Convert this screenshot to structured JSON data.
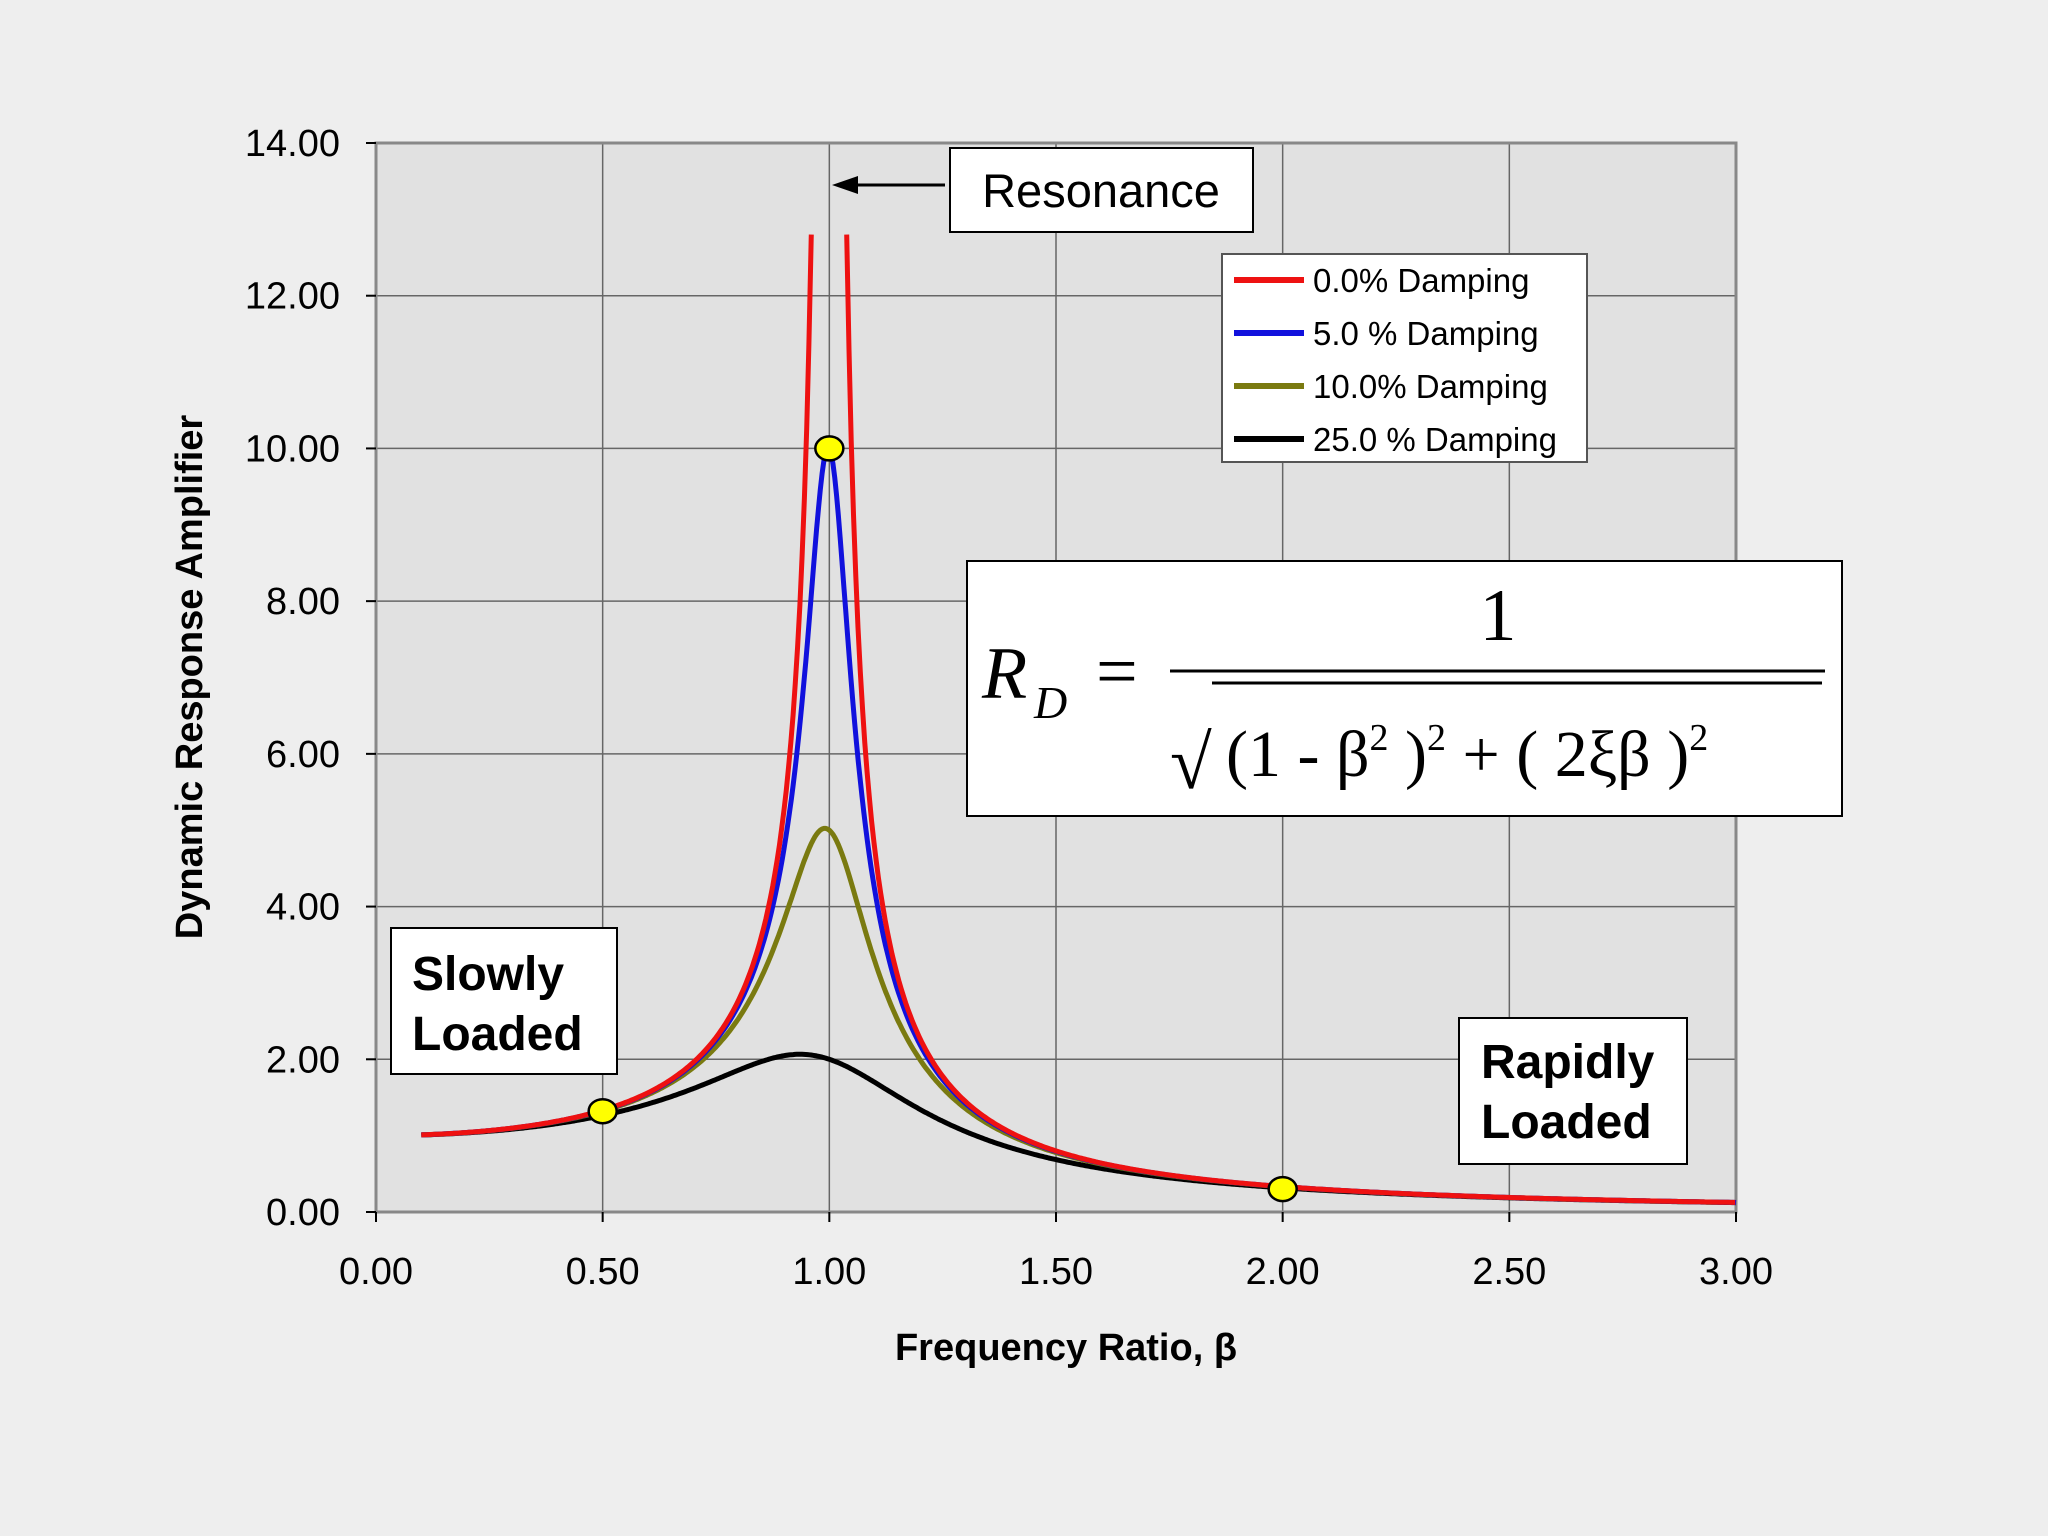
{
  "chart_data": {
    "type": "line",
    "title": "",
    "xlabel": "Frequency Ratio, β",
    "ylabel": "Dynamic Response Amplifier",
    "xlim": [
      0,
      3
    ],
    "ylim": [
      0,
      14
    ],
    "grid": true,
    "x_ticks": [
      0,
      0.5,
      1,
      1.5,
      2,
      2.5,
      3
    ],
    "x_tick_labels": [
      "0.00",
      "0.50",
      "1.00",
      "1.50",
      "2.00",
      "2.50",
      "3.00"
    ],
    "y_ticks": [
      0,
      2,
      4,
      6,
      8,
      10,
      12,
      14
    ],
    "y_tick_labels": [
      "0.00",
      "2.00",
      "4.00",
      "6.00",
      "8.00",
      "10.00",
      "12.00",
      "14.00"
    ],
    "legend_position": "top-right",
    "series": [
      {
        "name": "0.0% Damping",
        "color": "#ee1111",
        "zeta": 0.0,
        "x_range": [
          0.1,
          3.0
        ],
        "peak_clip": 12.8
      },
      {
        "name": "5.0 % Damping",
        "color": "#1111dd",
        "zeta": 0.05,
        "x_range": [
          0.1,
          3.0
        ]
      },
      {
        "name": "10.0% Damping",
        "color": "#7a7a10",
        "zeta": 0.1,
        "x_range": [
          0.1,
          3.0
        ]
      },
      {
        "name": "25.0 % Damping",
        "color": "#000000",
        "zeta": 0.25,
        "x_range": [
          0.1,
          3.0
        ]
      }
    ],
    "markers": [
      {
        "x": 0.5,
        "y": 1.32,
        "color": "#ffff00"
      },
      {
        "x": 1.0,
        "y": 10.0,
        "color": "#ffff00"
      },
      {
        "x": 2.0,
        "y": 0.3,
        "color": "#ffff00"
      }
    ],
    "annotations": {
      "resonance": "Resonance",
      "slowly": [
        "Slowly",
        "Loaded"
      ],
      "rapidly": [
        "Rapidly",
        "Loaded"
      ]
    },
    "formula": {
      "lhs": "R",
      "lhs_sub": "D",
      "equals": "=",
      "numerator": "1",
      "sqrt": "√",
      "term1_open": "(1 - β",
      "term1_sq": "2",
      "term1_close": " )",
      "term1_pow": "2",
      "plus": " + ( 2ξβ )",
      "term2_pow": "2"
    }
  }
}
